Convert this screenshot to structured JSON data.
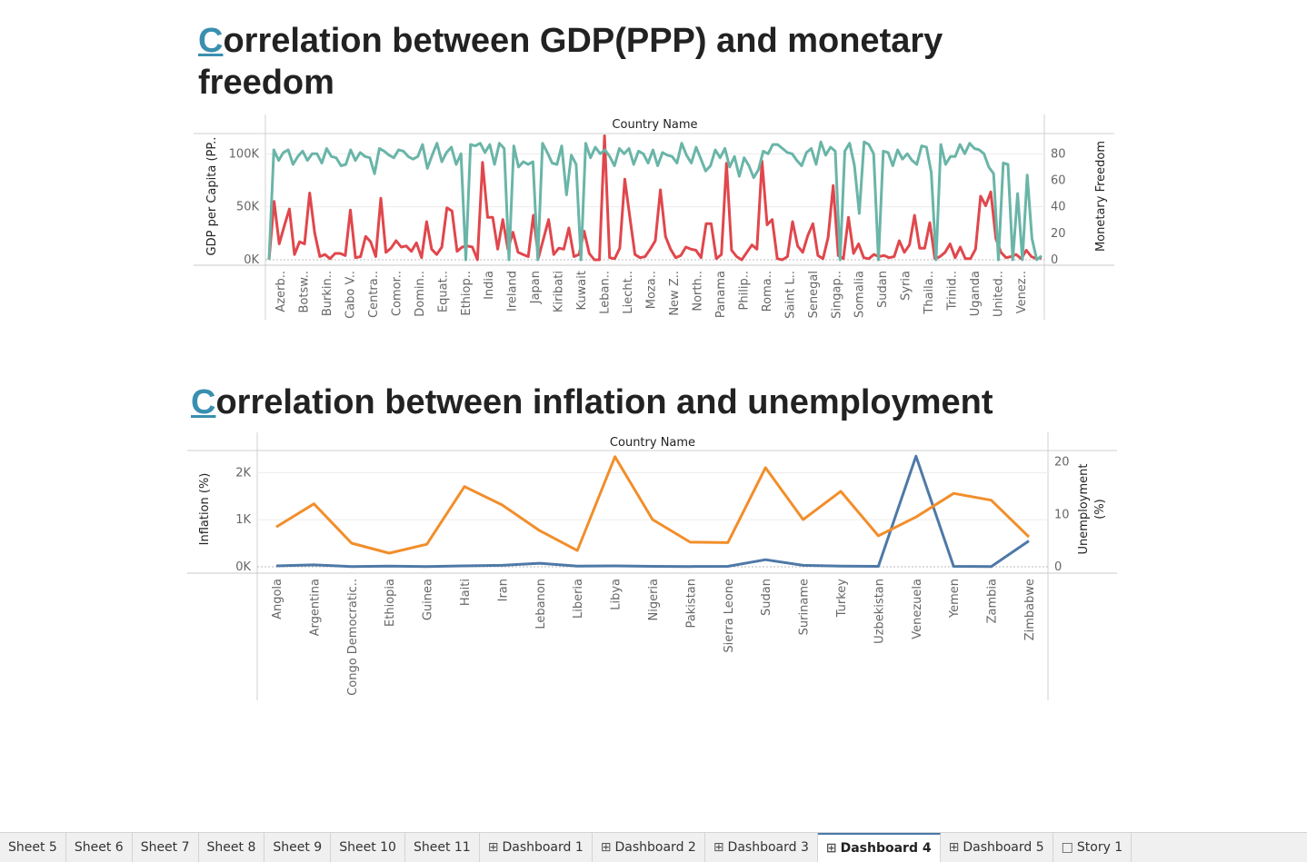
{
  "dashboard": {
    "title1": {
      "first": "C",
      "rest": "orrelation between GDP(PPP) and monetary freedom"
    },
    "title2": {
      "first": "C",
      "rest": "orrelation between inflation and unemployment"
    }
  },
  "tabs": [
    {
      "label": "Sheet 5",
      "icon": "",
      "active": false
    },
    {
      "label": "Sheet 6",
      "icon": "",
      "active": false
    },
    {
      "label": "Sheet 7",
      "icon": "",
      "active": false
    },
    {
      "label": "Sheet 8",
      "icon": "",
      "active": false
    },
    {
      "label": "Sheet 9",
      "icon": "",
      "active": false
    },
    {
      "label": "Sheet 10",
      "icon": "",
      "active": false
    },
    {
      "label": "Sheet 11",
      "icon": "",
      "active": false
    },
    {
      "label": "Dashboard 1",
      "icon": "dashboard-icon",
      "active": false
    },
    {
      "label": "Dashboard 2",
      "icon": "dashboard-icon",
      "active": false
    },
    {
      "label": "Dashboard 3",
      "icon": "dashboard-icon",
      "active": false
    },
    {
      "label": "Dashboard 4",
      "icon": "dashboard-icon",
      "active": true
    },
    {
      "label": "Dashboard 5",
      "icon": "dashboard-icon",
      "active": false
    },
    {
      "label": "Story 1",
      "icon": "story-icon",
      "active": false
    }
  ],
  "colors": {
    "gdp": "#e0474c",
    "monetary": "#6ab5a8",
    "inflation": "#4e79a7",
    "unemployment": "#f28e2b",
    "title_accent": "#3a8fb0"
  },
  "chart_data": [
    {
      "type": "line",
      "header": "Country Name",
      "ylabel": "GDP per Capita (PP..",
      "y2label": "Monetary Freedom",
      "y_ticks": [
        "0K",
        "50K",
        "100K"
      ],
      "y_tick_values": [
        0,
        50000,
        100000
      ],
      "y2_ticks": [
        "0",
        "20",
        "40",
        "60",
        "80"
      ],
      "y2_tick_values": [
        0,
        20,
        40,
        60,
        80
      ],
      "ylim": [
        0,
        120000
      ],
      "y2lim": [
        0,
        96
      ],
      "x_labels": [
        "Azerb..",
        "Botsw..",
        "Burkin..",
        "Cabo V..",
        "Centra..",
        "Comor..",
        "Domin..",
        "Equat..",
        "Ethiop..",
        "India",
        "Ireland",
        "Japan",
        "Kiribati",
        "Kuwait",
        "Leban..",
        "Liecht..",
        "Moza..",
        "New Z..",
        "North..",
        "Panama",
        "Philip..",
        "Roma..",
        "Saint L..",
        "Senegal",
        "Singap..",
        "Somalia",
        "Sudan",
        "Syria",
        "Thaila..",
        "Trinid..",
        "Uganda",
        "United..",
        "Venez.."
      ],
      "series": [
        {
          "name": "GDP per Capita (PPP)",
          "axis": "left",
          "values": [
            0,
            55000,
            15000,
            32000,
            48000,
            5000,
            17000,
            15000,
            63000,
            25000,
            3000,
            5000,
            1000,
            6000,
            6000,
            4000,
            47000,
            2000,
            3000,
            22000,
            17000,
            3000,
            58000,
            7000,
            11000,
            18000,
            12000,
            13000,
            8000,
            16000,
            2000,
            36000,
            10000,
            5000,
            12000,
            49000,
            46000,
            8000,
            12000,
            13000,
            12000,
            0,
            92000,
            40000,
            40000,
            10000,
            38000,
            10000,
            26000,
            7000,
            5000,
            3000,
            42000,
            2000,
            20000,
            38000,
            5000,
            11000,
            10000,
            30000,
            3000,
            5000,
            27000,
            6000,
            0,
            0,
            117000,
            2000,
            1000,
            11000,
            76000,
            40000,
            5000,
            2000,
            3000,
            10000,
            18000,
            66000,
            22000,
            10000,
            2000,
            4000,
            12000,
            10000,
            9000,
            2000,
            34000,
            34000,
            1000,
            5000,
            91000,
            9000,
            3000,
            0,
            7000,
            14000,
            10000,
            93000,
            33000,
            38000,
            1000,
            0,
            3000,
            36000,
            13000,
            7000,
            23000,
            34000,
            4000,
            1000,
            21000,
            70000,
            4000,
            1000,
            40000,
            6000,
            15000,
            2000,
            1000,
            5000,
            3000,
            4000,
            2000,
            3000,
            18000,
            7000,
            14000,
            42000,
            11000,
            11000,
            35000,
            1000,
            3000,
            7000,
            15000,
            2000,
            12000,
            1000,
            1000,
            10000,
            60000,
            51000,
            64000,
            20000,
            7000,
            2000,
            3000,
            5000,
            1000,
            9000,
            3000,
            1000,
            2000
          ]
        },
        {
          "name": "Monetary Freedom",
          "axis": "right",
          "values": [
            0,
            83,
            75,
            81,
            83,
            72,
            78,
            82,
            75,
            80,
            80,
            73,
            84,
            78,
            77,
            71,
            72,
            83,
            75,
            81,
            78,
            77,
            65,
            84,
            82,
            79,
            77,
            83,
            82,
            78,
            76,
            78,
            87,
            69,
            79,
            88,
            74,
            81,
            85,
            72,
            80,
            0,
            87,
            86,
            88,
            81,
            87,
            72,
            88,
            84,
            0,
            86,
            70,
            74,
            72,
            74,
            0,
            88,
            81,
            73,
            72,
            86,
            49,
            79,
            72,
            0,
            88,
            77,
            85,
            80,
            83,
            78,
            71,
            84,
            80,
            84,
            72,
            82,
            80,
            73,
            83,
            71,
            81,
            79,
            78,
            73,
            88,
            79,
            73,
            85,
            76,
            67,
            71,
            83,
            77,
            84,
            70,
            78,
            63,
            77,
            71,
            62,
            68,
            82,
            80,
            87,
            87,
            84,
            81,
            80,
            75,
            71,
            81,
            84,
            72,
            89,
            79,
            85,
            82,
            0,
            82,
            88,
            71,
            35,
            89,
            87,
            80,
            0,
            82,
            81,
            71,
            83,
            76,
            80,
            75,
            72,
            86,
            85,
            66,
            0,
            87,
            72,
            78,
            78,
            87,
            80,
            88,
            84,
            83,
            80,
            70,
            65,
            0,
            73,
            72,
            0,
            50,
            0,
            64,
            16,
            0,
            3
          ]
        }
      ]
    },
    {
      "type": "line",
      "header": "Country Name",
      "ylabel": "Inflation (%)",
      "y2label": [
        "Unemployment",
        "(%)"
      ],
      "y_ticks": [
        "0K",
        "1K",
        "2K"
      ],
      "y_tick_values": [
        0,
        1000,
        2000
      ],
      "y2_ticks": [
        "0",
        "10",
        "20"
      ],
      "y2_tick_values": [
        0,
        10,
        20
      ],
      "ylim": [
        0,
        2450
      ],
      "y2lim": [
        0,
        22
      ],
      "x_labels": [
        "Angola",
        "Argentina",
        "Congo Democratic..",
        "Ethiopia",
        "Guinea",
        "Haiti",
        "Iran",
        "Lebanon",
        "Liberia",
        "Libya",
        "Nigeria",
        "Pakistan",
        "Sierra Leone",
        "Sudan",
        "Suriname",
        "Turkey",
        "Uzbekistan",
        "Venezuela",
        "Yemen",
        "Zambia",
        "Zimbabwe"
      ],
      "series": [
        {
          "name": "Inflation (%)",
          "axis": "left",
          "values": [
            20,
            40,
            5,
            15,
            5,
            20,
            30,
            75,
            15,
            20,
            10,
            5,
            10,
            150,
            30,
            15,
            10,
            2350,
            10,
            5,
            550
          ]
        },
        {
          "name": "Unemployment (%)",
          "axis": "right",
          "values": [
            7.6,
            12.0,
            4.5,
            2.6,
            4.3,
            15.3,
            11.8,
            6.9,
            3.1,
            21.0,
            9.0,
            4.7,
            4.6,
            18.9,
            9.0,
            14.4,
            5.9,
            9.5,
            14.0,
            12.7,
            5.7
          ]
        }
      ]
    }
  ]
}
